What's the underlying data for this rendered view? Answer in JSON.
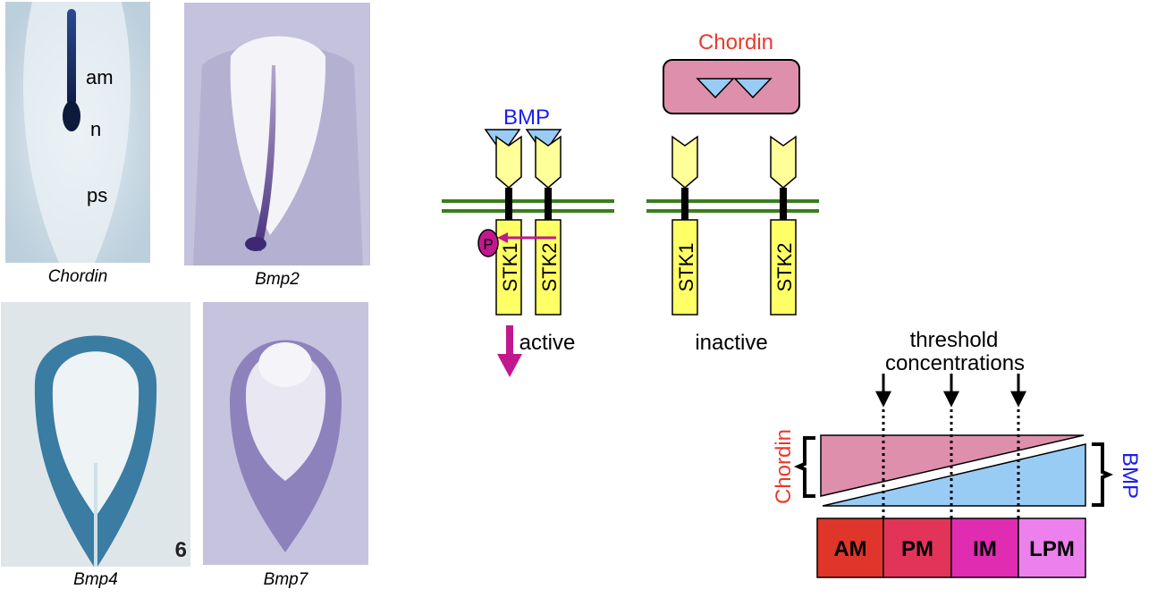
{
  "embryos": {
    "chordin": {
      "caption": "Chordin",
      "labels": [
        "am",
        "n",
        "ps"
      ]
    },
    "bmp2": {
      "caption": "Bmp2"
    },
    "bmp4": {
      "caption": "Bmp4",
      "panel_number": "6"
    },
    "bmp7": {
      "caption": "Bmp7"
    }
  },
  "receptors": {
    "bmp_label": "BMP",
    "chordin_label": "Chordin",
    "phospho_label": "P",
    "active": {
      "label": "active",
      "kinases": [
        "STK1",
        "STK2"
      ]
    },
    "inactive": {
      "label": "inactive",
      "kinases": [
        "STK1",
        "STK2"
      ]
    }
  },
  "gradient": {
    "threshold_label_line1": "threshold",
    "threshold_label_line2": "concentrations",
    "left_label": "Chordin",
    "right_label": "BMP",
    "zones": [
      {
        "label": "AM",
        "color": "#e0352b"
      },
      {
        "label": "PM",
        "color": "#e23458"
      },
      {
        "label": "IM",
        "color": "#e02cb0"
      },
      {
        "label": "LPM",
        "color": "#ec80ec"
      }
    ]
  },
  "colors": {
    "chordin_red": "#e83a2c",
    "bmp_blue": "#1c1cf0",
    "magenta": "#c2188f",
    "receptor_yellow": "#ffff66",
    "membrane_green": "#3a7d1e",
    "pink_fill": "#de8fab",
    "blue_fill": "#99ccf5"
  }
}
